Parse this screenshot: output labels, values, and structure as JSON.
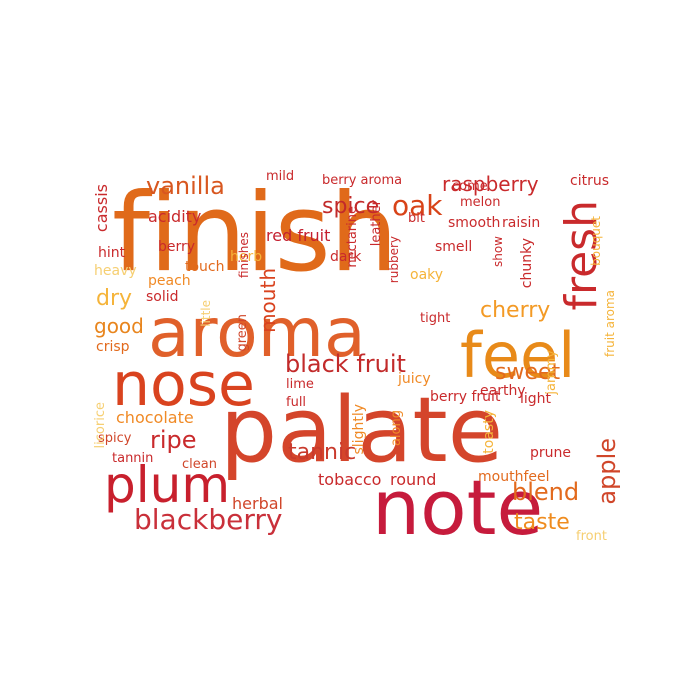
{
  "wordcloud": {
    "colors": [
      "#d6532a",
      "#e6731c",
      "#c61b2f",
      "#f6a623",
      "#f4c542",
      "#b9262f"
    ],
    "words": [
      {
        "text": "finish",
        "color": "#e06a1a"
      },
      {
        "text": "palate",
        "color": "#d4452b"
      },
      {
        "text": "aroma",
        "color": "#e0602a"
      },
      {
        "text": "note",
        "color": "#c61b3c"
      },
      {
        "text": "nose",
        "color": "#d9431f"
      },
      {
        "text": "feel",
        "color": "#e88a19"
      },
      {
        "text": "plum",
        "color": "#c8202d"
      },
      {
        "text": "fresh",
        "color": "#c92a2c"
      },
      {
        "text": "black fruit",
        "color": "#c22a2a"
      },
      {
        "text": "blackberry",
        "color": "#c9303a"
      },
      {
        "text": "vanilla",
        "color": "#d8571f"
      },
      {
        "text": "raspberry",
        "color": "#c92a2c"
      },
      {
        "text": "oak",
        "color": "#d84318"
      },
      {
        "text": "spice",
        "color": "#c22a2a"
      },
      {
        "text": "cherry",
        "color": "#f39a25"
      },
      {
        "text": "sweet",
        "color": "#e26a1d"
      },
      {
        "text": "tannic",
        "color": "#c93a2c"
      },
      {
        "text": "blend",
        "color": "#e26a1d"
      },
      {
        "text": "taste",
        "color": "#ef8c1f"
      },
      {
        "text": "apple",
        "color": "#d0462a"
      },
      {
        "text": "ripe",
        "color": "#c92a2c"
      },
      {
        "text": "dry",
        "color": "#f5b43a"
      },
      {
        "text": "good",
        "color": "#e8851d"
      },
      {
        "text": "mouth",
        "color": "#d9431f"
      },
      {
        "text": "chocolate",
        "color": "#f08a26"
      },
      {
        "text": "acidity",
        "color": "#c92a2c"
      },
      {
        "text": "red fruit",
        "color": "#c41f2f"
      },
      {
        "text": "mouthfeel",
        "color": "#e26a1d"
      },
      {
        "text": "tobacco",
        "color": "#c92a2c"
      },
      {
        "text": "round",
        "color": "#c92a2c"
      },
      {
        "text": "herbal",
        "color": "#d0462a"
      },
      {
        "text": "citrus",
        "color": "#c92a2c"
      },
      {
        "text": "cassis",
        "color": "#c92a2c"
      },
      {
        "text": "hint",
        "color": "#c92a2c"
      },
      {
        "text": "berry",
        "color": "#c92a2c"
      },
      {
        "text": "touch",
        "color": "#e26a1d"
      },
      {
        "text": "peach",
        "color": "#f08a26"
      },
      {
        "text": "solid",
        "color": "#c92a2c"
      },
      {
        "text": "crisp",
        "color": "#e26a1d"
      },
      {
        "text": "heavy",
        "color": "#f6cf72"
      },
      {
        "text": "herb",
        "color": "#f5b43a"
      },
      {
        "text": "dark",
        "color": "#c92a2c"
      },
      {
        "text": "oaky",
        "color": "#f5b43a"
      },
      {
        "text": "smell",
        "color": "#c92a2c"
      },
      {
        "text": "smooth",
        "color": "#c92a2c"
      },
      {
        "text": "raisin",
        "color": "#c92a2c"
      },
      {
        "text": "melon",
        "color": "#c92a2c"
      },
      {
        "text": "chunky",
        "color": "#c92a2c"
      },
      {
        "text": "earthy",
        "color": "#c92a2c"
      },
      {
        "text": "juicy",
        "color": "#f08a26"
      },
      {
        "text": "berry fruit",
        "color": "#c92a2c"
      },
      {
        "text": "light",
        "color": "#c92a2c"
      },
      {
        "text": "prune",
        "color": "#c92a2c"
      },
      {
        "text": "toasty",
        "color": "#f5b43a"
      },
      {
        "text": "spicy",
        "color": "#d0462a"
      },
      {
        "text": "tannin",
        "color": "#c92a2c"
      },
      {
        "text": "clean",
        "color": "#d0462a"
      },
      {
        "text": "lime",
        "color": "#c92a2c"
      },
      {
        "text": "full",
        "color": "#c92a2c"
      },
      {
        "text": "green",
        "color": "#d0462a"
      },
      {
        "text": "mild",
        "color": "#c92a2c"
      },
      {
        "text": "berry aroma",
        "color": "#c92a2c"
      },
      {
        "text": "bit",
        "color": "#c92a2c"
      },
      {
        "text": "come",
        "color": "#c92a2c"
      },
      {
        "text": "tight",
        "color": "#c92a2c"
      },
      {
        "text": "jammy",
        "color": "#f5b43a"
      },
      {
        "text": "bouquet",
        "color": "#f5b43a"
      },
      {
        "text": "licorice",
        "color": "#f6cf72"
      },
      {
        "text": "nectarine",
        "color": "#c92a2c"
      },
      {
        "text": "leather",
        "color": "#c92a2c"
      },
      {
        "text": "rubbery",
        "color": "#c92a2c"
      },
      {
        "text": "finishes",
        "color": "#c92a2c"
      },
      {
        "text": "little",
        "color": "#f6cf72"
      },
      {
        "text": "slightly",
        "color": "#f08a26"
      },
      {
        "text": "along",
        "color": "#f08a26"
      },
      {
        "text": "show",
        "color": "#c92a2c"
      },
      {
        "text": "fruit aroma",
        "color": "#f5b43a"
      },
      {
        "text": "front",
        "color": "#f6cf72"
      }
    ]
  }
}
